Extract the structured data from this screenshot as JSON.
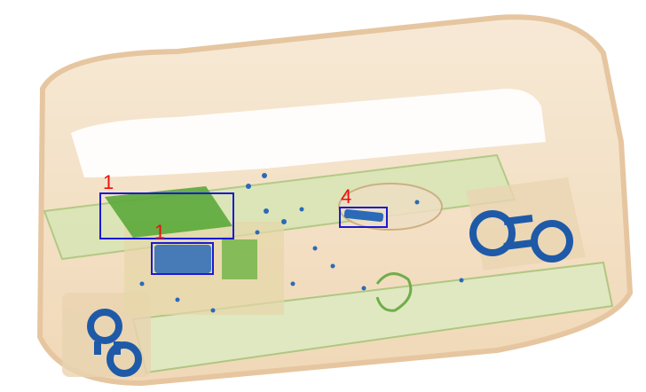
{
  "scan": {
    "detections": [
      {
        "label": "1",
        "box_color": "#1a1ad6",
        "label_color": "#e81010"
      },
      {
        "label": "1",
        "box_color": "#1a1ad6",
        "label_color": "#e81010"
      },
      {
        "label": "4",
        "box_color": "#1a1ad6",
        "label_color": "#e81010"
      }
    ]
  },
  "colors": {
    "background": "#ffffff",
    "case_shell": "#f3dcbc",
    "case_edge": "#e6c49a",
    "rails": "#cfe2ae",
    "metal_object": "#5aa83a",
    "dense_object": "#2a6ab8",
    "logo": "#1e5aa8"
  },
  "icons": [
    "cd-logo-icon"
  ]
}
